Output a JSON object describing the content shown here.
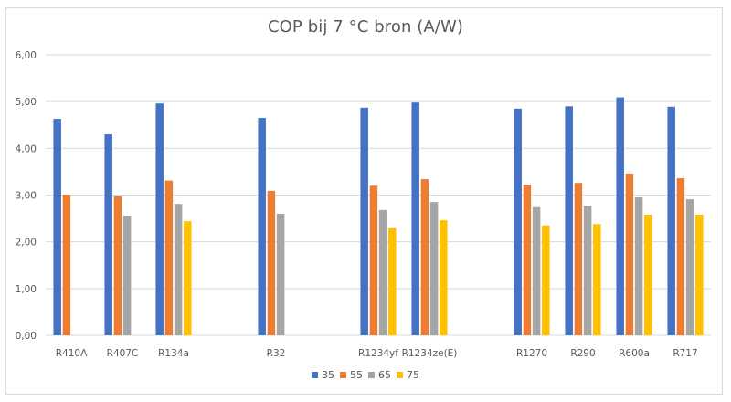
{
  "chart_data": {
    "type": "bar",
    "title": "COP bij 7 °C bron (A/W)",
    "xlabel": "",
    "ylabel": "",
    "ylim": [
      0,
      6
    ],
    "yticks": [
      "0,00",
      "1,00",
      "2,00",
      "3,00",
      "4,00",
      "5,00",
      "6,00"
    ],
    "ytick_values": [
      0,
      1,
      2,
      3,
      4,
      5,
      6
    ],
    "grid": true,
    "legend_position": "bottom",
    "categories": [
      "R410A",
      "R407C",
      "R134a",
      "",
      "R32",
      "",
      "R1234yf",
      "R1234ze(E)",
      "",
      "R1270",
      "R290",
      "R600a",
      "R717"
    ],
    "series": [
      {
        "name": "35",
        "color": "#4472c4",
        "values": [
          4.63,
          4.3,
          4.96,
          null,
          4.65,
          null,
          4.87,
          4.98,
          null,
          4.85,
          4.9,
          5.09,
          4.89
        ]
      },
      {
        "name": "55",
        "color": "#ed7d31",
        "values": [
          3.01,
          2.97,
          3.31,
          null,
          3.09,
          null,
          3.2,
          3.34,
          null,
          3.22,
          3.26,
          3.46,
          3.36
        ]
      },
      {
        "name": "65",
        "color": "#a5a5a5",
        "values": [
          null,
          2.56,
          2.81,
          null,
          2.6,
          null,
          2.68,
          2.85,
          null,
          2.74,
          2.77,
          2.95,
          2.91
        ]
      },
      {
        "name": "75",
        "color": "#ffc000",
        "values": [
          null,
          null,
          2.44,
          null,
          null,
          null,
          2.29,
          2.46,
          null,
          2.35,
          2.38,
          2.58,
          2.58
        ]
      }
    ]
  }
}
